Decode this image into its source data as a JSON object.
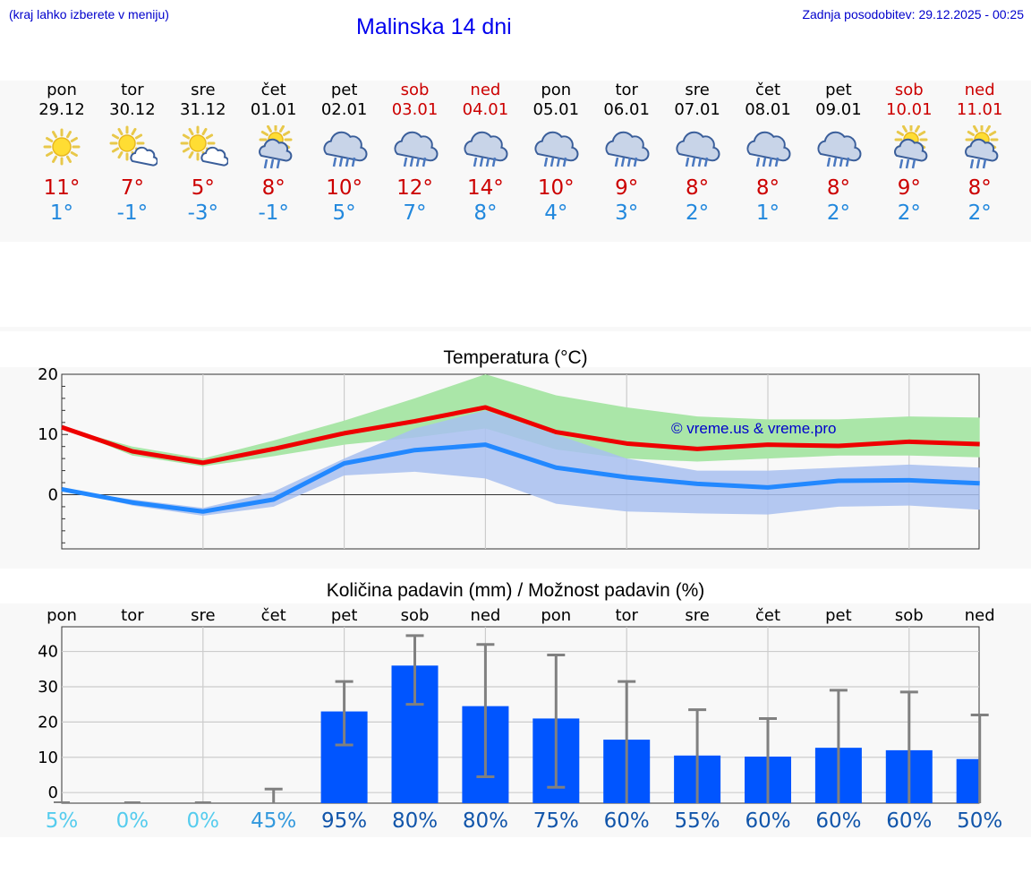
{
  "header": {
    "menu_hint": "(kraj lahko izberete v meniju)",
    "title": "Malinska 14 dni",
    "updated": "Zadnja posodobitev: 29.12.2025 - 00:25"
  },
  "days": [
    {
      "name": "pon",
      "date": "29.12",
      "icon": "sun-icon",
      "tmax": "11°",
      "tmin": "1°",
      "weekend": false
    },
    {
      "name": "tor",
      "date": "30.12",
      "icon": "sun-cloud-icon",
      "tmax": "7°",
      "tmin": "-1°",
      "weekend": false
    },
    {
      "name": "sre",
      "date": "31.12",
      "icon": "sun-cloud-icon",
      "tmax": "5°",
      "tmin": "-3°",
      "weekend": false
    },
    {
      "name": "čet",
      "date": "01.01",
      "icon": "sun-cloud-rain-icon",
      "tmax": "8°",
      "tmin": "-1°",
      "weekend": false
    },
    {
      "name": "pet",
      "date": "02.01",
      "icon": "cloud-rain-icon",
      "tmax": "10°",
      "tmin": "5°",
      "weekend": false
    },
    {
      "name": "sob",
      "date": "03.01",
      "icon": "cloud-rain-icon",
      "tmax": "12°",
      "tmin": "7°",
      "weekend": true
    },
    {
      "name": "ned",
      "date": "04.01",
      "icon": "cloud-rain-icon",
      "tmax": "14°",
      "tmin": "8°",
      "weekend": true
    },
    {
      "name": "pon",
      "date": "05.01",
      "icon": "cloud-rain-icon",
      "tmax": "10°",
      "tmin": "4°",
      "weekend": false
    },
    {
      "name": "tor",
      "date": "06.01",
      "icon": "cloud-rain-icon",
      "tmax": "9°",
      "tmin": "3°",
      "weekend": false
    },
    {
      "name": "sre",
      "date": "07.01",
      "icon": "cloud-rain-icon",
      "tmax": "8°",
      "tmin": "2°",
      "weekend": false
    },
    {
      "name": "čet",
      "date": "08.01",
      "icon": "cloud-rain-icon",
      "tmax": "8°",
      "tmin": "1°",
      "weekend": false
    },
    {
      "name": "pet",
      "date": "09.01",
      "icon": "cloud-rain-icon",
      "tmax": "8°",
      "tmin": "2°",
      "weekend": false
    },
    {
      "name": "sob",
      "date": "10.01",
      "icon": "sun-cloud-rain-icon",
      "tmax": "9°",
      "tmin": "2°",
      "weekend": true
    },
    {
      "name": "ned",
      "date": "11.01",
      "icon": "sun-cloud-rain-icon",
      "tmax": "8°",
      "tmin": "2°",
      "weekend": true
    }
  ],
  "colors": {
    "tmax": "#ee0000",
    "tmin": "#2288ff",
    "band_max": "#aae6a8",
    "band_min": "#a8c0f0",
    "overlap": "#7cc8aa",
    "bar": "#0055ff",
    "error": "#808080",
    "pct_low": "#55ccee",
    "pct_mid": "#3399dd",
    "pct_high": "#1155aa"
  },
  "chart_data": [
    {
      "type": "line",
      "title": "Temperatura (°C)",
      "watermark": "© vreme.us & vreme.pro",
      "ylim": [
        -9,
        20
      ],
      "ytick_labels": [
        "20",
        "10",
        "0"
      ],
      "yticks": [
        20,
        10,
        0
      ],
      "x": [
        0,
        1,
        2,
        3,
        4,
        5,
        6,
        7,
        8,
        9,
        10,
        11,
        12,
        13
      ],
      "series": [
        {
          "name": "max",
          "values": [
            11.2,
            7.2,
            5.3,
            7.6,
            10.2,
            12.2,
            14.5,
            10.4,
            8.5,
            7.6,
            8.3,
            8.1,
            8.8,
            8.4
          ]
        },
        {
          "name": "min",
          "values": [
            0.9,
            -1.3,
            -2.8,
            -0.8,
            5.2,
            7.4,
            8.3,
            4.5,
            2.9,
            1.8,
            1.2,
            2.3,
            2.4,
            1.9
          ]
        }
      ],
      "bands": [
        {
          "name": "max_range",
          "low": [
            11.2,
            6.5,
            4.7,
            6.4,
            8.3,
            9.5,
            11.0,
            7.5,
            6.0,
            5.5,
            6.0,
            6.5,
            6.5,
            6.2
          ],
          "high": [
            11.2,
            8.0,
            6.0,
            9.0,
            12.3,
            16.0,
            20.0,
            16.5,
            14.5,
            13.0,
            12.5,
            12.5,
            13.0,
            12.8
          ]
        },
        {
          "name": "min_range",
          "low": [
            0.9,
            -1.8,
            -3.5,
            -2.0,
            3.2,
            3.8,
            2.7,
            -1.5,
            -2.8,
            -3.1,
            -3.3,
            -2.0,
            -1.8,
            -2.5
          ],
          "high": [
            0.9,
            -0.8,
            -2.2,
            0.5,
            6.0,
            11.0,
            14.0,
            10.0,
            6.0,
            4.0,
            4.0,
            4.5,
            5.0,
            4.5
          ]
        }
      ]
    },
    {
      "type": "bar",
      "title": "Količina padavin (mm) / Možnost padavin (%)",
      "categories": [
        "pon",
        "tor",
        "sre",
        "čet",
        "pet",
        "sob",
        "ned",
        "pon",
        "tor",
        "sre",
        "čet",
        "pet",
        "sob",
        "ned"
      ],
      "ylim": [
        -3,
        47
      ],
      "ytick_labels": [
        "40",
        "30",
        "20",
        "10",
        "0"
      ],
      "yticks": [
        40,
        30,
        20,
        10,
        0
      ],
      "values": [
        0,
        0,
        0,
        0,
        23,
        36,
        24.5,
        21,
        15,
        10.5,
        10.2,
        12.7,
        12,
        9.5
      ],
      "err_low": [
        0,
        0,
        0,
        0,
        13.5,
        25,
        4.5,
        1.5,
        0,
        0,
        0,
        0,
        0,
        0
      ],
      "err_high": [
        0,
        0,
        0,
        1,
        31.5,
        44.5,
        42,
        39,
        31.5,
        23.5,
        21,
        29,
        28.5,
        22
      ],
      "chance": [
        "5%",
        "0%",
        "0%",
        "45%",
        "95%",
        "80%",
        "80%",
        "75%",
        "60%",
        "55%",
        "60%",
        "60%",
        "60%",
        "50%"
      ]
    }
  ]
}
